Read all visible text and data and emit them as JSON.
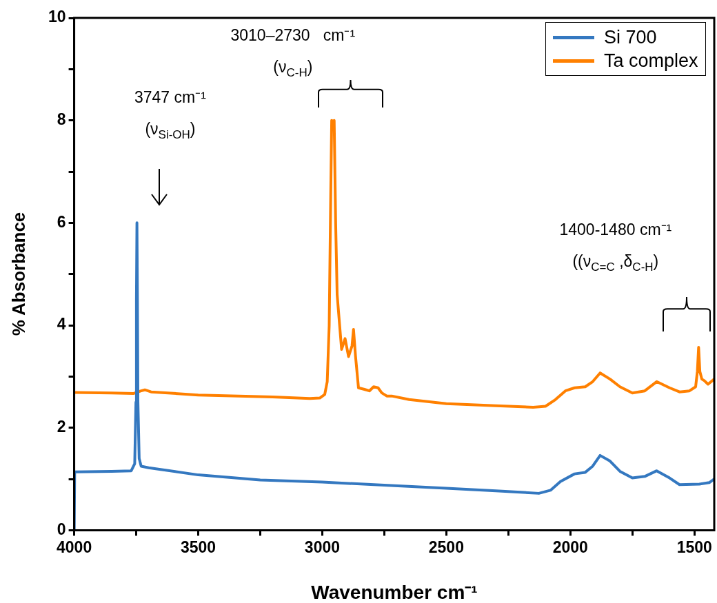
{
  "chart_data": {
    "type": "line",
    "xlabel": "Wavenumber cm⁻¹",
    "ylabel": "% Absorbance",
    "xlim": [
      4000,
      1420
    ],
    "ylim": [
      0,
      10
    ],
    "xticks": [
      4000,
      {
        "value": 3750,
        "label": null
      },
      3500,
      {
        "value": 3250,
        "label": null
      },
      3000,
      {
        "value": 2750,
        "label": null
      },
      2500,
      {
        "value": 2250,
        "label": null
      },
      2000,
      {
        "value": 1750,
        "label": null
      },
      1500
    ],
    "yticks": [
      0,
      {
        "value": 1,
        "label": null
      },
      2,
      {
        "value": 3,
        "label": null
      },
      4,
      {
        "value": 5,
        "label": null
      },
      6,
      {
        "value": 7,
        "label": null
      },
      8,
      {
        "value": 9,
        "label": null
      },
      10
    ],
    "grid": false,
    "legend": "top right",
    "marker": "none",
    "line_style": "solid",
    "series": [
      {
        "name": "Si 700",
        "color": "#3478c0",
        "x": [
          4000,
          3998,
          3850,
          3770,
          3756,
          3751,
          3749,
          3747,
          3745,
          3743,
          3738,
          3730,
          3700,
          3500,
          3250,
          3000,
          2750,
          2500,
          2300,
          2127,
          2080,
          2040,
          1983,
          1940,
          1910,
          1880,
          1840,
          1800,
          1750,
          1700,
          1652,
          1600,
          1560,
          1480,
          1440,
          1420
        ],
        "values": [
          0,
          1.14,
          1.15,
          1.16,
          1.3,
          2.5,
          4.5,
          6.0,
          4.5,
          2.5,
          1.4,
          1.25,
          1.22,
          1.08,
          0.98,
          0.94,
          0.88,
          0.82,
          0.77,
          0.72,
          0.78,
          0.95,
          1.1,
          1.13,
          1.25,
          1.46,
          1.35,
          1.15,
          1.02,
          1.05,
          1.16,
          1.02,
          0.89,
          0.9,
          0.93,
          1.0
        ]
      },
      {
        "name": "Ta complex",
        "color": "#ff8000",
        "x": [
          4000,
          3850,
          3760,
          3730,
          3715,
          3690,
          3500,
          3200,
          3050,
          3010,
          2990,
          2980,
          2972,
          2966,
          2962,
          2956,
          2952,
          2946,
          2940,
          2930,
          2922,
          2908,
          2894,
          2880,
          2874,
          2866,
          2854,
          2830,
          2810,
          2793,
          2775,
          2760,
          2740,
          2720,
          2650,
          2500,
          2300,
          2150,
          2100,
          2060,
          2020,
          1983,
          1940,
          1910,
          1880,
          1840,
          1800,
          1750,
          1700,
          1652,
          1600,
          1560,
          1520,
          1495,
          1488,
          1483,
          1478,
          1470,
          1460,
          1445,
          1420
        ],
        "values": [
          2.69,
          2.68,
          2.67,
          2.72,
          2.74,
          2.7,
          2.64,
          2.6,
          2.57,
          2.58,
          2.65,
          2.9,
          4.0,
          6.5,
          8.0,
          7.9,
          8.0,
          6.0,
          4.6,
          4.0,
          3.53,
          3.74,
          3.39,
          3.6,
          3.92,
          3.4,
          2.78,
          2.75,
          2.72,
          2.8,
          2.78,
          2.68,
          2.62,
          2.62,
          2.55,
          2.47,
          2.43,
          2.4,
          2.42,
          2.55,
          2.72,
          2.78,
          2.8,
          2.9,
          3.07,
          2.95,
          2.8,
          2.68,
          2.72,
          2.9,
          2.78,
          2.7,
          2.72,
          2.8,
          3.1,
          3.57,
          3.1,
          2.95,
          2.92,
          2.85,
          2.95
        ]
      }
    ],
    "annotations": [
      "3747 cm⁻¹\n(ν$_{Si-OH}$)",
      "3010–2730   cm⁻¹\n(ν$_{C-H}$)",
      "1400-1480 cm⁻¹\n((ν$_{C=C}$ ,δ$_{C-H}$)"
    ]
  }
}
